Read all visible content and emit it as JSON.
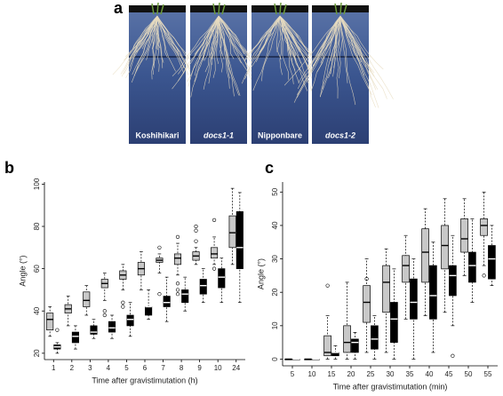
{
  "panel_a": {
    "label": "a",
    "photos": [
      "Koshihikari",
      "docs1-1",
      "Nipponbare",
      "docs1-2"
    ]
  },
  "chart_data": [
    {
      "type": "box",
      "panel_label": "b",
      "xlabel": "Time after gravistimutation (h)",
      "ylabel": "Angle (°)",
      "categories": [
        "1",
        "2",
        "3",
        "4",
        "5",
        "6",
        "7",
        "8",
        "9",
        "10",
        "24"
      ],
      "ylim": [
        17,
        101
      ],
      "yticks": [
        20,
        40,
        60,
        80,
        100
      ],
      "series": [
        {
          "color": "#c8c8c8",
          "boxes": [
            {
              "min": 28,
              "q1": 31,
              "median": 36,
              "q3": 39,
              "max": 42,
              "outliers": []
            },
            {
              "min": 33,
              "q1": 39,
              "median": 41,
              "q3": 43,
              "max": 47,
              "outliers": []
            },
            {
              "min": 38,
              "q1": 42,
              "median": 45,
              "q3": 49,
              "max": 52,
              "outliers": []
            },
            {
              "min": 45,
              "q1": 51,
              "median": 53,
              "q3": 55,
              "max": 58,
              "outliers": [
                40,
                38
              ]
            },
            {
              "min": 50,
              "q1": 55,
              "median": 57,
              "q3": 59,
              "max": 62,
              "outliers": [
                44,
                42
              ]
            },
            {
              "min": 50,
              "q1": 57,
              "median": 60,
              "q3": 63,
              "max": 68,
              "outliers": []
            },
            {
              "min": 58,
              "q1": 63,
              "median": 64,
              "q3": 65,
              "max": 67,
              "outliers": [
                70,
                48
              ]
            },
            {
              "min": 57,
              "q1": 62,
              "median": 65,
              "q3": 67,
              "max": 72,
              "outliers": [
                75,
                53,
                50,
                48
              ]
            },
            {
              "min": 62,
              "q1": 64,
              "median": 66,
              "q3": 68,
              "max": 70,
              "outliers": [
                80,
                78,
                73
              ]
            },
            {
              "min": 62,
              "q1": 65,
              "median": 67,
              "q3": 70,
              "max": 75,
              "outliers": [
                83,
                60
              ]
            },
            {
              "min": 62,
              "q1": 70,
              "median": 77,
              "q3": 85,
              "max": 98,
              "outliers": []
            }
          ]
        },
        {
          "color": "#000000",
          "boxes": [
            {
              "min": 20,
              "q1": 22,
              "median": 23,
              "q3": 24,
              "max": 25,
              "outliers": [
                31
              ]
            },
            {
              "min": 22,
              "q1": 25,
              "median": 28,
              "q3": 30,
              "max": 33,
              "outliers": []
            },
            {
              "min": 27,
              "q1": 29,
              "median": 30,
              "q3": 33,
              "max": 36,
              "outliers": []
            },
            {
              "min": 27,
              "q1": 30,
              "median": 32,
              "q3": 35,
              "max": 38,
              "outliers": []
            },
            {
              "min": 28,
              "q1": 33,
              "median": 36,
              "q3": 38,
              "max": 44,
              "outliers": []
            },
            {
              "min": 36,
              "q1": 38,
              "median": 42,
              "q3": 42,
              "max": 50,
              "outliers": []
            },
            {
              "min": 35,
              "q1": 42,
              "median": 44,
              "q3": 47,
              "max": 56,
              "outliers": []
            },
            {
              "min": 40,
              "q1": 44,
              "median": 48,
              "q3": 50,
              "max": 56,
              "outliers": []
            },
            {
              "min": 44,
              "q1": 48,
              "median": 52,
              "q3": 55,
              "max": 60,
              "outliers": []
            },
            {
              "min": 44,
              "q1": 51,
              "median": 56,
              "q3": 60,
              "max": 65,
              "outliers": []
            },
            {
              "min": 44,
              "q1": 60,
              "median": 70,
              "q3": 87,
              "max": 96,
              "outliers": []
            }
          ]
        }
      ]
    },
    {
      "type": "box",
      "panel_label": "c",
      "xlabel": "Time after gravistimutation (min)",
      "ylabel": "Angle (°)",
      "categories": [
        "5",
        "10",
        "15",
        "20",
        "25",
        "30",
        "35",
        "40",
        "45",
        "50",
        "55"
      ],
      "ylim": [
        -2,
        53
      ],
      "yticks": [
        0,
        10,
        20,
        30,
        40,
        50
      ],
      "series": [
        {
          "color": "#c8c8c8",
          "boxes": [
            {
              "min": 0,
              "q1": 0,
              "median": 0,
              "q3": 0,
              "max": 0,
              "outliers": []
            },
            {
              "min": 0,
              "q1": 0,
              "median": 0,
              "q3": 0,
              "max": 0,
              "outliers": []
            },
            {
              "min": 0,
              "q1": 1,
              "median": 2,
              "q3": 7,
              "max": 13,
              "outliers": [
                22
              ]
            },
            {
              "min": 0,
              "q1": 2,
              "median": 5,
              "q3": 10,
              "max": 23,
              "outliers": []
            },
            {
              "min": 2,
              "q1": 11,
              "median": 17,
              "q3": 22,
              "max": 30,
              "outliers": [
                24
              ]
            },
            {
              "min": 2,
              "q1": 14,
              "median": 23,
              "q3": 28,
              "max": 33,
              "outliers": []
            },
            {
              "min": 12,
              "q1": 23,
              "median": 28,
              "q3": 31,
              "max": 37,
              "outliers": []
            },
            {
              "min": 13,
              "q1": 23,
              "median": 32,
              "q3": 39,
              "max": 45,
              "outliers": []
            },
            {
              "min": 14,
              "q1": 27,
              "median": 34,
              "q3": 40,
              "max": 48,
              "outliers": []
            },
            {
              "min": 25,
              "q1": 32,
              "median": 36,
              "q3": 42,
              "max": 48,
              "outliers": []
            },
            {
              "min": 28,
              "q1": 37,
              "median": 40,
              "q3": 42,
              "max": 50,
              "outliers": [
                25
              ]
            }
          ]
        },
        {
          "color": "#000000",
          "boxes": [
            {
              "min": 0,
              "q1": 0,
              "median": 0,
              "q3": 0,
              "max": 0,
              "outliers": []
            },
            {
              "min": 0,
              "q1": 0,
              "median": 0,
              "q3": 0,
              "max": 0,
              "outliers": []
            },
            {
              "min": 0,
              "q1": 1,
              "median": 2,
              "q3": 2,
              "max": 4,
              "outliers": []
            },
            {
              "min": 0,
              "q1": 2,
              "median": 5,
              "q3": 6,
              "max": 8,
              "outliers": []
            },
            {
              "min": 0,
              "q1": 3,
              "median": 6,
              "q3": 10,
              "max": 13,
              "outliers": []
            },
            {
              "min": 0,
              "q1": 5,
              "median": 12,
              "q3": 17,
              "max": 27,
              "outliers": []
            },
            {
              "min": 0,
              "q1": 12,
              "median": 17,
              "q3": 24,
              "max": 30,
              "outliers": []
            },
            {
              "min": 2,
              "q1": 12,
              "median": 19,
              "q3": 28,
              "max": 35,
              "outliers": []
            },
            {
              "min": 10,
              "q1": 19,
              "median": 25,
              "q3": 28,
              "max": 37,
              "outliers": [
                1
              ]
            },
            {
              "min": 17,
              "q1": 23,
              "median": 28,
              "q3": 32,
              "max": 42,
              "outliers": []
            },
            {
              "min": 22,
              "q1": 24,
              "median": 30,
              "q3": 34,
              "max": 40,
              "outliers": []
            }
          ]
        }
      ]
    }
  ]
}
